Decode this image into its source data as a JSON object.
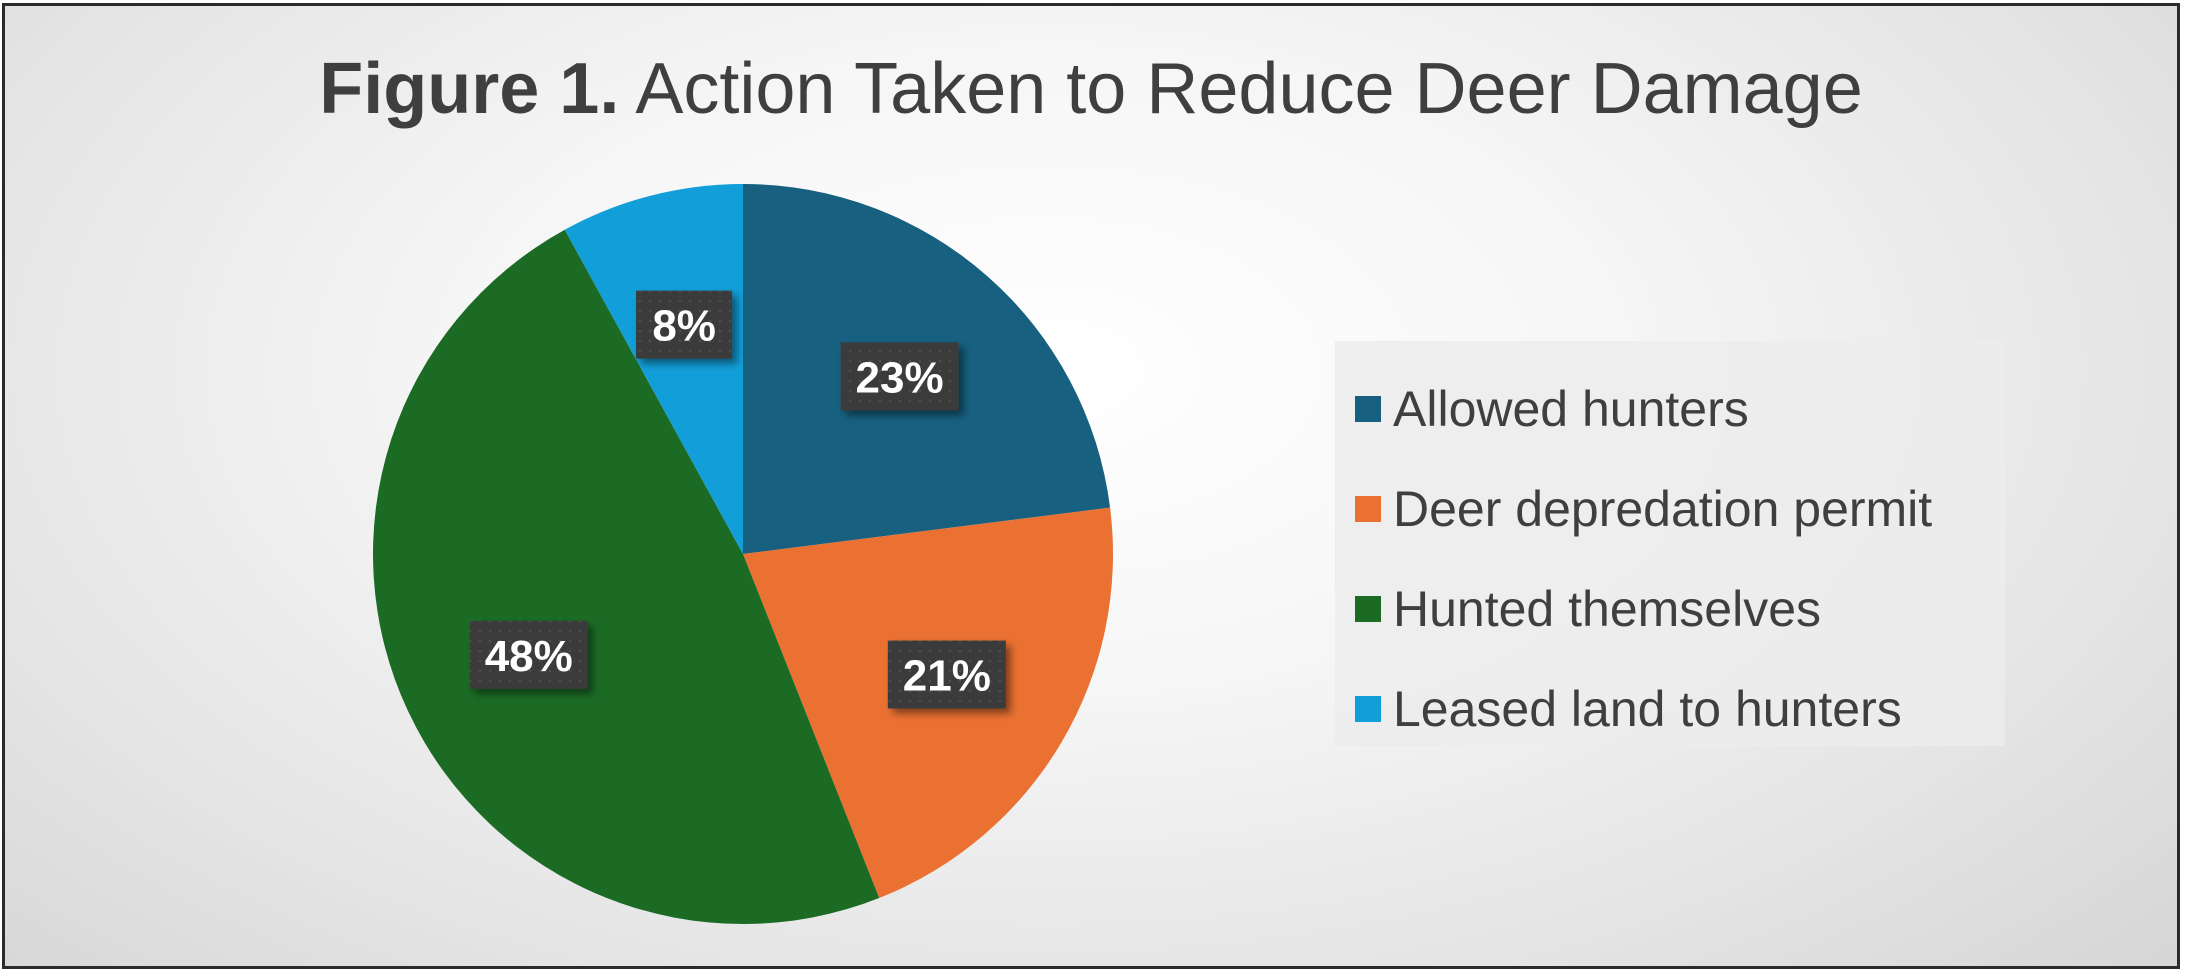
{
  "title": {
    "prefix": "Figure 1.",
    "text": "Action Taken to Reduce Deer Damage"
  },
  "chart_data": {
    "type": "pie",
    "title": "Figure 1. Action Taken to Reduce Deer Damage",
    "slices": [
      {
        "name": "Allowed hunters",
        "value": 23,
        "label": "23%",
        "color": "#17607f"
      },
      {
        "name": "Deer depredation permit",
        "value": 21,
        "label": "21%",
        "color": "#ea7132"
      },
      {
        "name": "Hunted themselves",
        "value": 48,
        "label": "48%",
        "color": "#1b6b25"
      },
      {
        "name": "Leased land to hunters",
        "value": 8,
        "label": "8%",
        "color": "#129ed8"
      }
    ],
    "start": "12 o'clock",
    "direction": "clockwise",
    "legend": "right"
  }
}
